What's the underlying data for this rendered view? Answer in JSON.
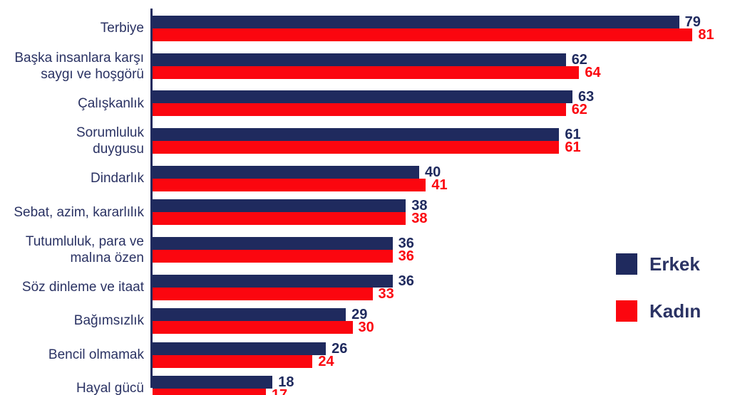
{
  "chart_data": {
    "type": "bar",
    "orientation": "horizontal",
    "title": "",
    "xlabel": "",
    "ylabel": "",
    "xlim": [
      0,
      86
    ],
    "grid": false,
    "legend_position": "right",
    "value_labels": true,
    "categories": [
      "Terbiye",
      "Başka insanlara karşı\nsaygı ve hoşgörü",
      "Çalışkanlık",
      "Sorumluluk\nduygusu",
      "Dindarlık",
      "Sebat, azim, kararlılık",
      "Tutumluluk, para ve\nmalına özen",
      "Söz dinleme ve itaat",
      "Bağımsızlık",
      "Bencil olmamak",
      "Hayal gücü"
    ],
    "series": [
      {
        "name": "Erkek",
        "color": "#1f2a5e",
        "values": [
          79,
          62,
          63,
          61,
          40,
          38,
          36,
          36,
          29,
          26,
          18
        ]
      },
      {
        "name": "Kadın",
        "color": "#fb060f",
        "values": [
          81,
          64,
          62,
          61,
          41,
          38,
          36,
          33,
          30,
          24,
          17
        ]
      }
    ]
  }
}
